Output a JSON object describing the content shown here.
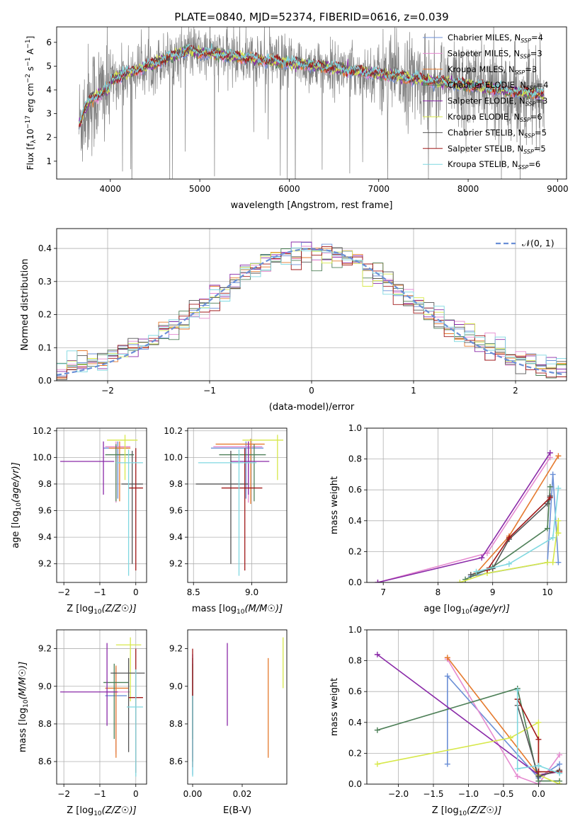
{
  "figure": {
    "title": "PLATE=0840, MJD=52374, FIBERID=0616, z=0.039"
  },
  "colors": {
    "series": [
      "#6b8fd6",
      "#e58ad0",
      "#e57a2e",
      "#4d7f57",
      "#8a2aa8",
      "#d7e84a",
      "#555555",
      "#a01818",
      "#7fd8e0"
    ],
    "data_spectrum": "#808080",
    "grid": "#b0b0b0",
    "normal_curve": "#6a8fd6"
  },
  "chart_data": [
    {
      "id": "spectrum",
      "type": "line",
      "xlabel": "wavelength [Angstrom, rest frame]",
      "ylabel": "Flux [f_λ 10^-17 erg cm^-2 s^-1 A^-1]",
      "xlim": [
        3400,
        9100
      ],
      "ylim": [
        0.25,
        6.65
      ],
      "xticks": [
        4000,
        5000,
        6000,
        7000,
        8000,
        9000
      ],
      "yticks": [
        1,
        2,
        3,
        4,
        5,
        6
      ],
      "grid": false,
      "legend_position": "top-right",
      "data_range": [
        3650,
        8850
      ],
      "series": [
        {
          "name": "Chabrier MILES, N_SSP=4",
          "sub": "SSP",
          "label_pre": "Chabrier MILES, N",
          "label_post": "=4"
        },
        {
          "name": "Salpeter MILES, N_SSP=3",
          "sub": "SSP",
          "label_pre": "Salpeter MILES, N",
          "label_post": "=3"
        },
        {
          "name": "Kroupa MILES, N_SSP=3",
          "sub": "SSP",
          "label_pre": "Kroupa MILES, N",
          "label_post": "=3"
        },
        {
          "name": "Chabrier ELODIE, N_SSP=4",
          "sub": "SSP",
          "label_pre": "Chabrier ELODIE, N",
          "label_post": "=4"
        },
        {
          "name": "Salpeter ELODIE, N_SSP=3",
          "sub": "SSP",
          "label_pre": "Salpeter ELODIE, N",
          "label_post": "=3"
        },
        {
          "name": "Kroupa ELODIE, N_SSP=6",
          "sub": "SSP",
          "label_pre": "Kroupa ELODIE, N",
          "label_post": "=6"
        },
        {
          "name": "Chabrier STELIB, N_SSP=5",
          "sub": "SSP",
          "label_pre": "Chabrier STELIB, N",
          "label_post": "=5"
        },
        {
          "name": "Salpeter STELIB, N_SSP=5",
          "sub": "SSP",
          "label_pre": "Salpeter STELIB, N",
          "label_post": "=5"
        },
        {
          "name": "Kroupa STELIB, N_SSP=6",
          "sub": "SSP",
          "label_pre": "Kroupa STELIB, N",
          "label_post": "=6"
        }
      ]
    },
    {
      "id": "residuals",
      "type": "line",
      "xlabel": "(data-model)/error",
      "ylabel": "Normed distribution",
      "xlim": [
        -2.5,
        2.5
      ],
      "ylim": [
        0,
        0.46
      ],
      "xticks": [
        -2,
        -1,
        0,
        1,
        2
      ],
      "yticks": [
        0.0,
        0.1,
        0.2,
        0.3,
        0.4
      ],
      "ytick_labels": [
        "0.0",
        "0.1",
        "0.2",
        "0.3",
        "0.4"
      ],
      "grid": true,
      "legend_position": "top-right",
      "legend_label": "𝒩(0, 1)",
      "bin_width": 0.1
    },
    {
      "id": "age_vs_Z",
      "type": "scatter",
      "xlabel": "Z [log10(Z/Z☉)]",
      "ylabel": "age  [log10(age/yr)]",
      "xlim": [
        -2.2,
        0.3
      ],
      "ylim": [
        9.06,
        10.22
      ],
      "xticks": [
        -2,
        -1,
        0
      ],
      "yticks": [
        9.2,
        9.4,
        9.6,
        9.8,
        10.0,
        10.2
      ],
      "ytick_labels": [
        "9.2",
        "9.4",
        "9.6",
        "9.8",
        "10.0",
        "10.2"
      ],
      "grid": true,
      "points": [
        {
          "x": -0.5,
          "xerr": [
            0.4,
            0.3
          ],
          "y": 10.07,
          "yerr": [
            0.38,
            0.05
          ]
        },
        {
          "x": -0.55,
          "xerr": [
            0.3,
            0.4
          ],
          "y": 10.08,
          "yerr": [
            0.42,
            0.04
          ]
        },
        {
          "x": -0.45,
          "xerr": [
            0.3,
            0.3
          ],
          "y": 10.07,
          "yerr": [
            0.4,
            0.05
          ]
        },
        {
          "x": -0.55,
          "xerr": [
            0.3,
            0.5
          ],
          "y": 10.02,
          "yerr": [
            0.35,
            0.08
          ]
        },
        {
          "x": -0.9,
          "xerr": [
            1.2,
            0.3
          ],
          "y": 9.97,
          "yerr": [
            0.25,
            0.15
          ]
        },
        {
          "x": -0.3,
          "xerr": [
            0.5,
            0.35
          ],
          "y": 10.13,
          "yerr": [
            0.3,
            0.04
          ]
        },
        {
          "x": -0.1,
          "xerr": [
            0.3,
            0.3
          ],
          "y": 9.8,
          "yerr": [
            0.6,
            0.25
          ]
        },
        {
          "x": 0.0,
          "xerr": [
            0.2,
            0.2
          ],
          "y": 9.77,
          "yerr": [
            0.62,
            0.3
          ]
        },
        {
          "x": -0.2,
          "xerr": [
            0.35,
            0.4
          ],
          "y": 9.96,
          "yerr": [
            0.85,
            0.1
          ]
        }
      ]
    },
    {
      "id": "age_vs_mass",
      "type": "scatter",
      "xlabel": "mass [log10(M/M☉)]",
      "ylabel": "",
      "xlim": [
        8.45,
        9.3
      ],
      "ylim": [
        9.06,
        10.22
      ],
      "xticks": [
        8.5,
        9.0
      ],
      "xtick_labels": [
        "8.5",
        "9.0"
      ],
      "yticks": [
        9.2,
        9.4,
        9.6,
        9.8,
        10.0,
        10.2
      ],
      "ytick_labels": [
        "9.2",
        "9.4",
        "9.6",
        "9.8",
        "10.0",
        "10.2"
      ],
      "grid": true,
      "points": [
        {
          "x": 8.95,
          "xerr": [
            0.3,
            0.15
          ],
          "y": 10.07,
          "yerr": [
            0.38,
            0.05
          ]
        },
        {
          "x": 8.97,
          "xerr": [
            0.3,
            0.12
          ],
          "y": 10.08,
          "yerr": [
            0.42,
            0.04
          ]
        },
        {
          "x": 8.99,
          "xerr": [
            0.3,
            0.12
          ],
          "y": 10.1,
          "yerr": [
            0.45,
            0.04
          ]
        },
        {
          "x": 9.02,
          "xerr": [
            0.3,
            0.1
          ],
          "y": 10.02,
          "yerr": [
            0.35,
            0.08
          ]
        },
        {
          "x": 8.97,
          "xerr": [
            0.15,
            0.18
          ],
          "y": 9.97,
          "yerr": [
            0.25,
            0.15
          ]
        },
        {
          "x": 9.22,
          "xerr": [
            0.3,
            0.05
          ],
          "y": 10.13,
          "yerr": [
            0.3,
            0.04
          ]
        },
        {
          "x": 8.82,
          "xerr": [
            0.3,
            0.15
          ],
          "y": 9.8,
          "yerr": [
            0.6,
            0.25
          ]
        },
        {
          "x": 8.94,
          "xerr": [
            0.2,
            0.15
          ],
          "y": 9.77,
          "yerr": [
            0.62,
            0.3
          ]
        },
        {
          "x": 8.89,
          "xerr": [
            0.35,
            0.15
          ],
          "y": 9.96,
          "yerr": [
            0.85,
            0.1
          ]
        }
      ]
    },
    {
      "id": "weight_vs_age",
      "type": "line",
      "xlabel": "age  [log10(age/yr)]",
      "ylabel": "mass weight",
      "xlim": [
        6.7,
        10.35
      ],
      "ylim": [
        0,
        1.0
      ],
      "xticks": [
        7,
        8,
        9,
        10
      ],
      "yticks": [
        0.0,
        0.2,
        0.4,
        0.6,
        0.8,
        1.0
      ],
      "ytick_labels": [
        "0.0",
        "0.2",
        "0.4",
        "0.6",
        "0.8",
        "1.0"
      ],
      "grid": true,
      "series": [
        {
          "x": [
            8.6,
            10.0,
            10.1,
            10.2
          ],
          "y": [
            0.04,
            0.13,
            0.7,
            0.13
          ]
        },
        {
          "x": [
            6.9,
            8.9,
            10.05
          ],
          "y": [
            0.0,
            0.19,
            0.81
          ]
        },
        {
          "x": [
            8.7,
            9.3,
            10.2
          ],
          "y": [
            0.06,
            0.3,
            0.82
          ]
        },
        {
          "x": [
            8.5,
            9.0,
            10.0,
            10.05
          ],
          "y": [
            0.02,
            0.1,
            0.35,
            0.62
          ]
        },
        {
          "x": [
            6.9,
            8.8,
            10.05
          ],
          "y": [
            0.0,
            0.16,
            0.84
          ]
        },
        {
          "x": [
            8.4,
            8.9,
            10.0,
            10.1,
            10.2,
            10.2
          ],
          "y": [
            0.0,
            0.06,
            0.13,
            0.13,
            0.4,
            0.32
          ]
        },
        {
          "x": [
            8.6,
            9.0,
            9.3,
            10.0,
            10.05
          ],
          "y": [
            0.05,
            0.09,
            0.28,
            0.51,
            0.56
          ]
        },
        {
          "x": [
            8.9,
            9.3,
            10.05
          ],
          "y": [
            0.08,
            0.29,
            0.55
          ]
        },
        {
          "x": [
            8.7,
            9.3,
            10.1,
            10.2
          ],
          "y": [
            0.07,
            0.12,
            0.29,
            0.61
          ]
        }
      ]
    },
    {
      "id": "mass_vs_Z",
      "type": "scatter",
      "xlabel": "Z [log10(Z/Z☉)]",
      "ylabel": "mass [log10(M/M☉)]",
      "xlim": [
        -2.2,
        0.3
      ],
      "ylim": [
        8.48,
        9.3
      ],
      "xticks": [
        -2,
        -1,
        0
      ],
      "yticks": [
        8.6,
        8.8,
        9.0,
        9.2
      ],
      "ytick_labels": [
        "8.6",
        "8.8",
        "9.0",
        "9.2"
      ],
      "grid": true,
      "points": [
        {
          "x": -0.55,
          "xerr": [
            0.3,
            0.3
          ],
          "y": 8.95,
          "yerr": [
            0.3,
            0.15
          ]
        },
        {
          "x": -0.55,
          "xerr": [
            0.3,
            0.4
          ],
          "y": 8.97,
          "yerr": [
            0.33,
            0.12
          ]
        },
        {
          "x": -0.55,
          "xerr": [
            0.3,
            0.35
          ],
          "y": 8.99,
          "yerr": [
            0.37,
            0.12
          ]
        },
        {
          "x": -0.6,
          "xerr": [
            0.3,
            0.4
          ],
          "y": 9.02,
          "yerr": [
            0.3,
            0.1
          ]
        },
        {
          "x": -0.8,
          "xerr": [
            1.3,
            0.3
          ],
          "y": 8.97,
          "yerr": [
            0.18,
            0.26
          ]
        },
        {
          "x": -0.15,
          "xerr": [
            0.4,
            0.3
          ],
          "y": 9.22,
          "yerr": [
            0.3,
            0.04
          ]
        },
        {
          "x": -0.2,
          "xerr": [
            0.5,
            0.45
          ],
          "y": 9.07,
          "yerr": [
            0.42,
            0.08
          ]
        },
        {
          "x": 0.0,
          "xerr": [
            0.2,
            0.2
          ],
          "y": 8.94,
          "yerr": [
            0.4,
            0.26
          ]
        },
        {
          "x": 0.0,
          "xerr": [
            0.25,
            0.2
          ],
          "y": 8.89,
          "yerr": [
            0.37,
            0.2
          ]
        }
      ]
    },
    {
      "id": "mass_vs_ebv",
      "type": "scatter",
      "xlabel": "E(B-V)",
      "ylabel": "",
      "xlim": [
        -0.002,
        0.038
      ],
      "ylim": [
        8.48,
        9.3
      ],
      "xticks": [
        0.0,
        0.02
      ],
      "xtick_labels": [
        "0.00",
        "0.02"
      ],
      "yticks": [
        8.6,
        8.8,
        9.0,
        9.2
      ],
      "ytick_labels": [
        "8.6",
        "8.8",
        "9.0",
        "9.2"
      ],
      "grid": false,
      "points": [
        {
          "x": 0.0,
          "y": 8.95,
          "yerr": [
            0.42,
            0.22
          ]
        },
        {
          "x": 0.0,
          "y": 8.97,
          "yerr": [
            0.35,
            0.2
          ]
        },
        {
          "x": 0.0305,
          "y": 8.95,
          "yerr": [
            0.33,
            0.2
          ]
        },
        {
          "x": 0.0,
          "y": 9.02,
          "yerr": [
            0.3,
            0.1
          ]
        },
        {
          "x": 0.014,
          "y": 8.97,
          "yerr": [
            0.18,
            0.26
          ]
        },
        {
          "x": 0.0365,
          "y": 9.11,
          "yerr": [
            0.12,
            0.15
          ]
        },
        {
          "x": 0.0,
          "y": 9.05,
          "yerr": [
            0.45,
            0.1
          ]
        },
        {
          "x": 0.0,
          "y": 9.02,
          "yerr": [
            0.45,
            0.18
          ]
        },
        {
          "x": 0.0,
          "y": 8.9,
          "yerr": [
            0.38,
            0.05
          ]
        }
      ]
    },
    {
      "id": "weight_vs_Z",
      "type": "line",
      "xlabel": "Z [log10(Z/Z☉)]",
      "ylabel": "mass weight",
      "xlim": [
        -2.45,
        0.4
      ],
      "ylim": [
        0,
        1.0
      ],
      "xticks": [
        -2.0,
        -1.5,
        -1.0,
        -0.5,
        0.0
      ],
      "xtick_labels": [
        "−2.0",
        "−1.5",
        "−1.0",
        "−0.5",
        "0.0"
      ],
      "yticks": [
        0.0,
        0.2,
        0.4,
        0.6,
        0.8,
        1.0
      ],
      "ytick_labels": [
        "0.0",
        "0.2",
        "0.4",
        "0.6",
        "0.8",
        "1.0"
      ],
      "grid": true,
      "series": [
        {
          "x": [
            -1.3,
            -1.3,
            0.0,
            0.3
          ],
          "y": [
            0.13,
            0.7,
            0.04,
            0.13
          ]
        },
        {
          "x": [
            -1.3,
            -0.3,
            0.0,
            0.3
          ],
          "y": [
            0.81,
            0.05,
            0.0,
            0.19
          ]
        },
        {
          "x": [
            -1.3,
            0.0,
            0.3
          ],
          "y": [
            0.82,
            0.06,
            0.08
          ]
        },
        {
          "x": [
            -2.3,
            -0.3,
            0.0,
            0.3
          ],
          "y": [
            0.35,
            0.62,
            0.02,
            0.02
          ]
        },
        {
          "x": [
            -2.3,
            0.0,
            0.3
          ],
          "y": [
            0.84,
            0.06,
            0.08
          ]
        },
        {
          "x": [
            -2.3,
            -0.4,
            0.0,
            0.0,
            0.3,
            0.3
          ],
          "y": [
            0.13,
            0.3,
            0.4,
            0.06,
            0.0,
            0.0
          ]
        },
        {
          "x": [
            -0.3,
            -0.3,
            0.0,
            0.3
          ],
          "y": [
            0.55,
            0.51,
            0.05,
            0.09
          ]
        },
        {
          "x": [
            -0.3,
            0.0,
            0.0,
            0.3
          ],
          "y": [
            0.55,
            0.29,
            0.08,
            0.08
          ]
        },
        {
          "x": [
            -0.3,
            -0.3,
            0.0,
            0.3
          ],
          "y": [
            0.61,
            0.1,
            0.12,
            0.07
          ]
        }
      ]
    }
  ]
}
